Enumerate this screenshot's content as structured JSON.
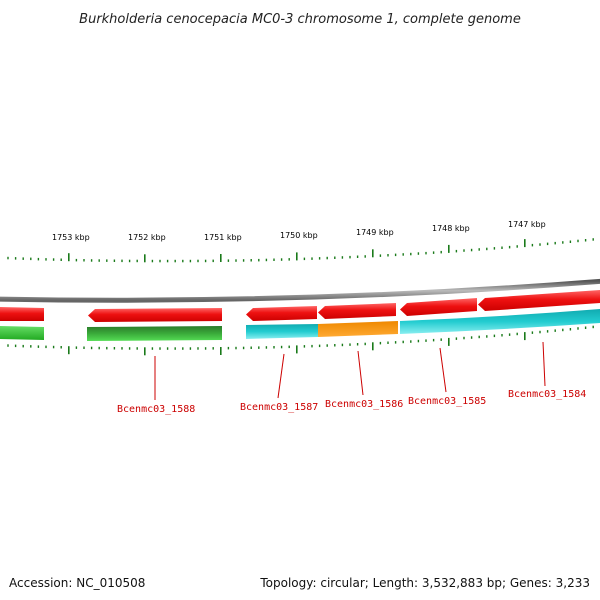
{
  "title": "Burkholderia cenocepacia MC0-3 chromosome 1, complete genome",
  "footer": {
    "accession": "Accession: NC_010508",
    "summary": "Topology: circular; Length: 3,532,883 bp; Genes: 3,233"
  },
  "kbp_labels": [
    "1753 kbp",
    "1752 kbp",
    "1751 kbp",
    "1750 kbp",
    "1749 kbp",
    "1748 kbp",
    "1747 kbp"
  ],
  "gene_labels": [
    "Bcenmc03_1588",
    "Bcenmc03_1587",
    "Bcenmc03_1586",
    "Bcenmc03_1585",
    "Bcenmc03_1584"
  ],
  "colors": {
    "backbone": "#8a8a8a",
    "cds_red": "#ee1111",
    "feature_green": "#33cc33",
    "feature_dark_green": "#2a7a2a",
    "feature_cyan": "#22c8cc",
    "feature_orange": "#ff9900",
    "tick_green": "#1a7a1a",
    "label_red": "#cc0000"
  }
}
